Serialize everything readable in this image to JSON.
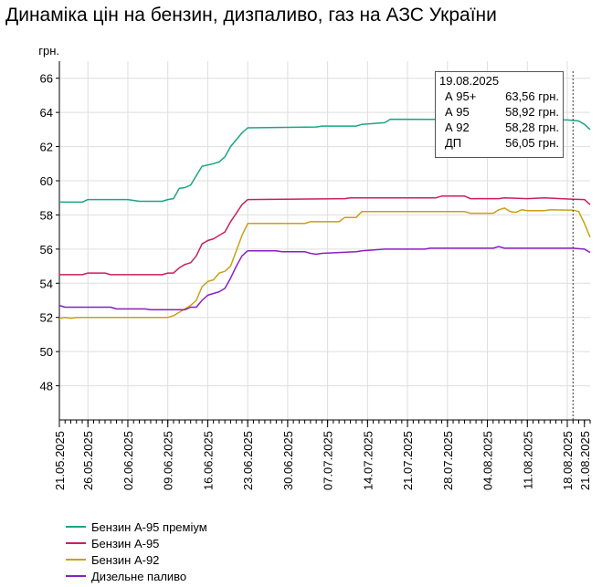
{
  "title": "Динаміка цін на бензин, дизпаливо, газ на АЗС України",
  "tooltip": {
    "date": "19.08.2025",
    "rows": [
      {
        "name": "А 95+",
        "value": "63,56 грн."
      },
      {
        "name": "А 95",
        "value": "58,92 грн."
      },
      {
        "name": "А 92",
        "value": "58,28 грн."
      },
      {
        "name": "ДП",
        "value": "56,05 грн."
      }
    ]
  },
  "chart_data": {
    "type": "line",
    "ylabel": "грн.",
    "ylim": [
      46,
      67
    ],
    "yticks": [
      48,
      50,
      52,
      54,
      56,
      58,
      60,
      62,
      64,
      66
    ],
    "x_start": "2025-05-21",
    "x_end": "2025-08-22",
    "xticks": [
      "21.05.2025",
      "26.05.2025",
      "02.06.2025",
      "09.06.2025",
      "16.06.2025",
      "23.06.2025",
      "30.06.2025",
      "07.07.2025",
      "14.07.2025",
      "21.07.2025",
      "28.07.2025",
      "04.08.2025",
      "11.08.2025",
      "18.08.2025",
      "21.08.2025"
    ],
    "grid": true,
    "marker_date": "2025-08-19",
    "legend_position": "bottom",
    "series": [
      {
        "name": "Бензин А-95 преміум",
        "color": "#1aa586",
        "points": [
          [
            "2025-05-21",
            58.75
          ],
          [
            "2025-05-25",
            58.75
          ],
          [
            "2025-05-26",
            58.9
          ],
          [
            "2025-06-02",
            58.9
          ],
          [
            "2025-06-04",
            58.8
          ],
          [
            "2025-06-08",
            58.8
          ],
          [
            "2025-06-09",
            58.9
          ],
          [
            "2025-06-10",
            58.95
          ],
          [
            "2025-06-11",
            59.55
          ],
          [
            "2025-06-12",
            59.6
          ],
          [
            "2025-06-13",
            59.75
          ],
          [
            "2025-06-14",
            60.3
          ],
          [
            "2025-06-15",
            60.85
          ],
          [
            "2025-06-17",
            61.0
          ],
          [
            "2025-06-18",
            61.1
          ],
          [
            "2025-06-19",
            61.4
          ],
          [
            "2025-06-20",
            62.0
          ],
          [
            "2025-06-22",
            62.8
          ],
          [
            "2025-06-23",
            63.1
          ],
          [
            "2025-07-05",
            63.15
          ],
          [
            "2025-07-06",
            63.2
          ],
          [
            "2025-07-12",
            63.2
          ],
          [
            "2025-07-13",
            63.3
          ],
          [
            "2025-07-17",
            63.4
          ],
          [
            "2025-07-18",
            63.6
          ],
          [
            "2025-08-18",
            63.56
          ],
          [
            "2025-08-20",
            63.5
          ],
          [
            "2025-08-21",
            63.3
          ],
          [
            "2025-08-22",
            63.0
          ]
        ]
      },
      {
        "name": "Бензин А-95",
        "color": "#cc1f5e",
        "points": [
          [
            "2025-05-21",
            54.5
          ],
          [
            "2025-05-25",
            54.5
          ],
          [
            "2025-05-26",
            54.6
          ],
          [
            "2025-05-29",
            54.6
          ],
          [
            "2025-05-30",
            54.5
          ],
          [
            "2025-06-08",
            54.5
          ],
          [
            "2025-06-09",
            54.6
          ],
          [
            "2025-06-10",
            54.6
          ],
          [
            "2025-06-11",
            54.9
          ],
          [
            "2025-06-12",
            55.1
          ],
          [
            "2025-06-13",
            55.2
          ],
          [
            "2025-06-14",
            55.6
          ],
          [
            "2025-06-15",
            56.3
          ],
          [
            "2025-06-16",
            56.5
          ],
          [
            "2025-06-17",
            56.6
          ],
          [
            "2025-06-18",
            56.8
          ],
          [
            "2025-06-19",
            57.0
          ],
          [
            "2025-06-20",
            57.6
          ],
          [
            "2025-06-21",
            58.1
          ],
          [
            "2025-06-22",
            58.6
          ],
          [
            "2025-06-23",
            58.9
          ],
          [
            "2025-07-10",
            58.95
          ],
          [
            "2025-07-11",
            59.0
          ],
          [
            "2025-07-26",
            59.0
          ],
          [
            "2025-07-27",
            59.1
          ],
          [
            "2025-07-31",
            59.1
          ],
          [
            "2025-08-01",
            58.95
          ],
          [
            "2025-08-06",
            58.95
          ],
          [
            "2025-08-07",
            59.0
          ],
          [
            "2025-08-11",
            58.95
          ],
          [
            "2025-08-14",
            59.0
          ],
          [
            "2025-08-19",
            58.92
          ],
          [
            "2025-08-21",
            58.9
          ],
          [
            "2025-08-22",
            58.6
          ]
        ]
      },
      {
        "name": "Бензин А-92",
        "color": "#c8a116",
        "points": [
          [
            "2025-05-21",
            51.95
          ],
          [
            "2025-05-22",
            52.0
          ],
          [
            "2025-05-23",
            51.95
          ],
          [
            "2025-05-24",
            52.0
          ],
          [
            "2025-06-09",
            52.0
          ],
          [
            "2025-06-10",
            52.1
          ],
          [
            "2025-06-11",
            52.3
          ],
          [
            "2025-06-12",
            52.5
          ],
          [
            "2025-06-13",
            52.7
          ],
          [
            "2025-06-14",
            53.0
          ],
          [
            "2025-06-15",
            53.8
          ],
          [
            "2025-06-16",
            54.1
          ],
          [
            "2025-06-17",
            54.2
          ],
          [
            "2025-06-18",
            54.6
          ],
          [
            "2025-06-19",
            54.7
          ],
          [
            "2025-06-20",
            55.0
          ],
          [
            "2025-06-21",
            55.9
          ],
          [
            "2025-06-22",
            56.8
          ],
          [
            "2025-06-23",
            57.5
          ],
          [
            "2025-07-03",
            57.5
          ],
          [
            "2025-07-04",
            57.6
          ],
          [
            "2025-07-09",
            57.6
          ],
          [
            "2025-07-10",
            57.85
          ],
          [
            "2025-07-12",
            57.85
          ],
          [
            "2025-07-13",
            58.2
          ],
          [
            "2025-07-31",
            58.2
          ],
          [
            "2025-08-01",
            58.1
          ],
          [
            "2025-08-05",
            58.1
          ],
          [
            "2025-08-06",
            58.3
          ],
          [
            "2025-08-07",
            58.4
          ],
          [
            "2025-08-08",
            58.2
          ],
          [
            "2025-08-09",
            58.15
          ],
          [
            "2025-08-10",
            58.3
          ],
          [
            "2025-08-11",
            58.25
          ],
          [
            "2025-08-14",
            58.25
          ],
          [
            "2025-08-15",
            58.3
          ],
          [
            "2025-08-19",
            58.28
          ],
          [
            "2025-08-20",
            58.2
          ],
          [
            "2025-08-21",
            57.5
          ],
          [
            "2025-08-22",
            56.7
          ]
        ]
      },
      {
        "name": "Дизельне паливо",
        "color": "#8a1fc0",
        "points": [
          [
            "2025-05-21",
            52.7
          ],
          [
            "2025-05-22",
            52.6
          ],
          [
            "2025-05-30",
            52.6
          ],
          [
            "2025-05-31",
            52.5
          ],
          [
            "2025-06-05",
            52.5
          ],
          [
            "2025-06-06",
            52.45
          ],
          [
            "2025-06-12",
            52.45
          ],
          [
            "2025-06-13",
            52.6
          ],
          [
            "2025-06-14",
            52.6
          ],
          [
            "2025-06-15",
            53.0
          ],
          [
            "2025-06-16",
            53.3
          ],
          [
            "2025-06-17",
            53.4
          ],
          [
            "2025-06-18",
            53.5
          ],
          [
            "2025-06-19",
            53.7
          ],
          [
            "2025-06-20",
            54.3
          ],
          [
            "2025-06-21",
            55.0
          ],
          [
            "2025-06-22",
            55.6
          ],
          [
            "2025-06-23",
            55.9
          ],
          [
            "2025-06-28",
            55.9
          ],
          [
            "2025-06-29",
            55.85
          ],
          [
            "2025-07-03",
            55.85
          ],
          [
            "2025-07-04",
            55.75
          ],
          [
            "2025-07-05",
            55.7
          ],
          [
            "2025-07-06",
            55.75
          ],
          [
            "2025-07-09",
            55.8
          ],
          [
            "2025-07-12",
            55.85
          ],
          [
            "2025-07-13",
            55.9
          ],
          [
            "2025-07-17",
            56.0
          ],
          [
            "2025-07-24",
            56.0
          ],
          [
            "2025-07-25",
            56.05
          ],
          [
            "2025-08-05",
            56.05
          ],
          [
            "2025-08-06",
            56.15
          ],
          [
            "2025-08-07",
            56.05
          ],
          [
            "2025-08-19",
            56.05
          ],
          [
            "2025-08-21",
            56.0
          ],
          [
            "2025-08-22",
            55.8
          ]
        ]
      }
    ]
  }
}
